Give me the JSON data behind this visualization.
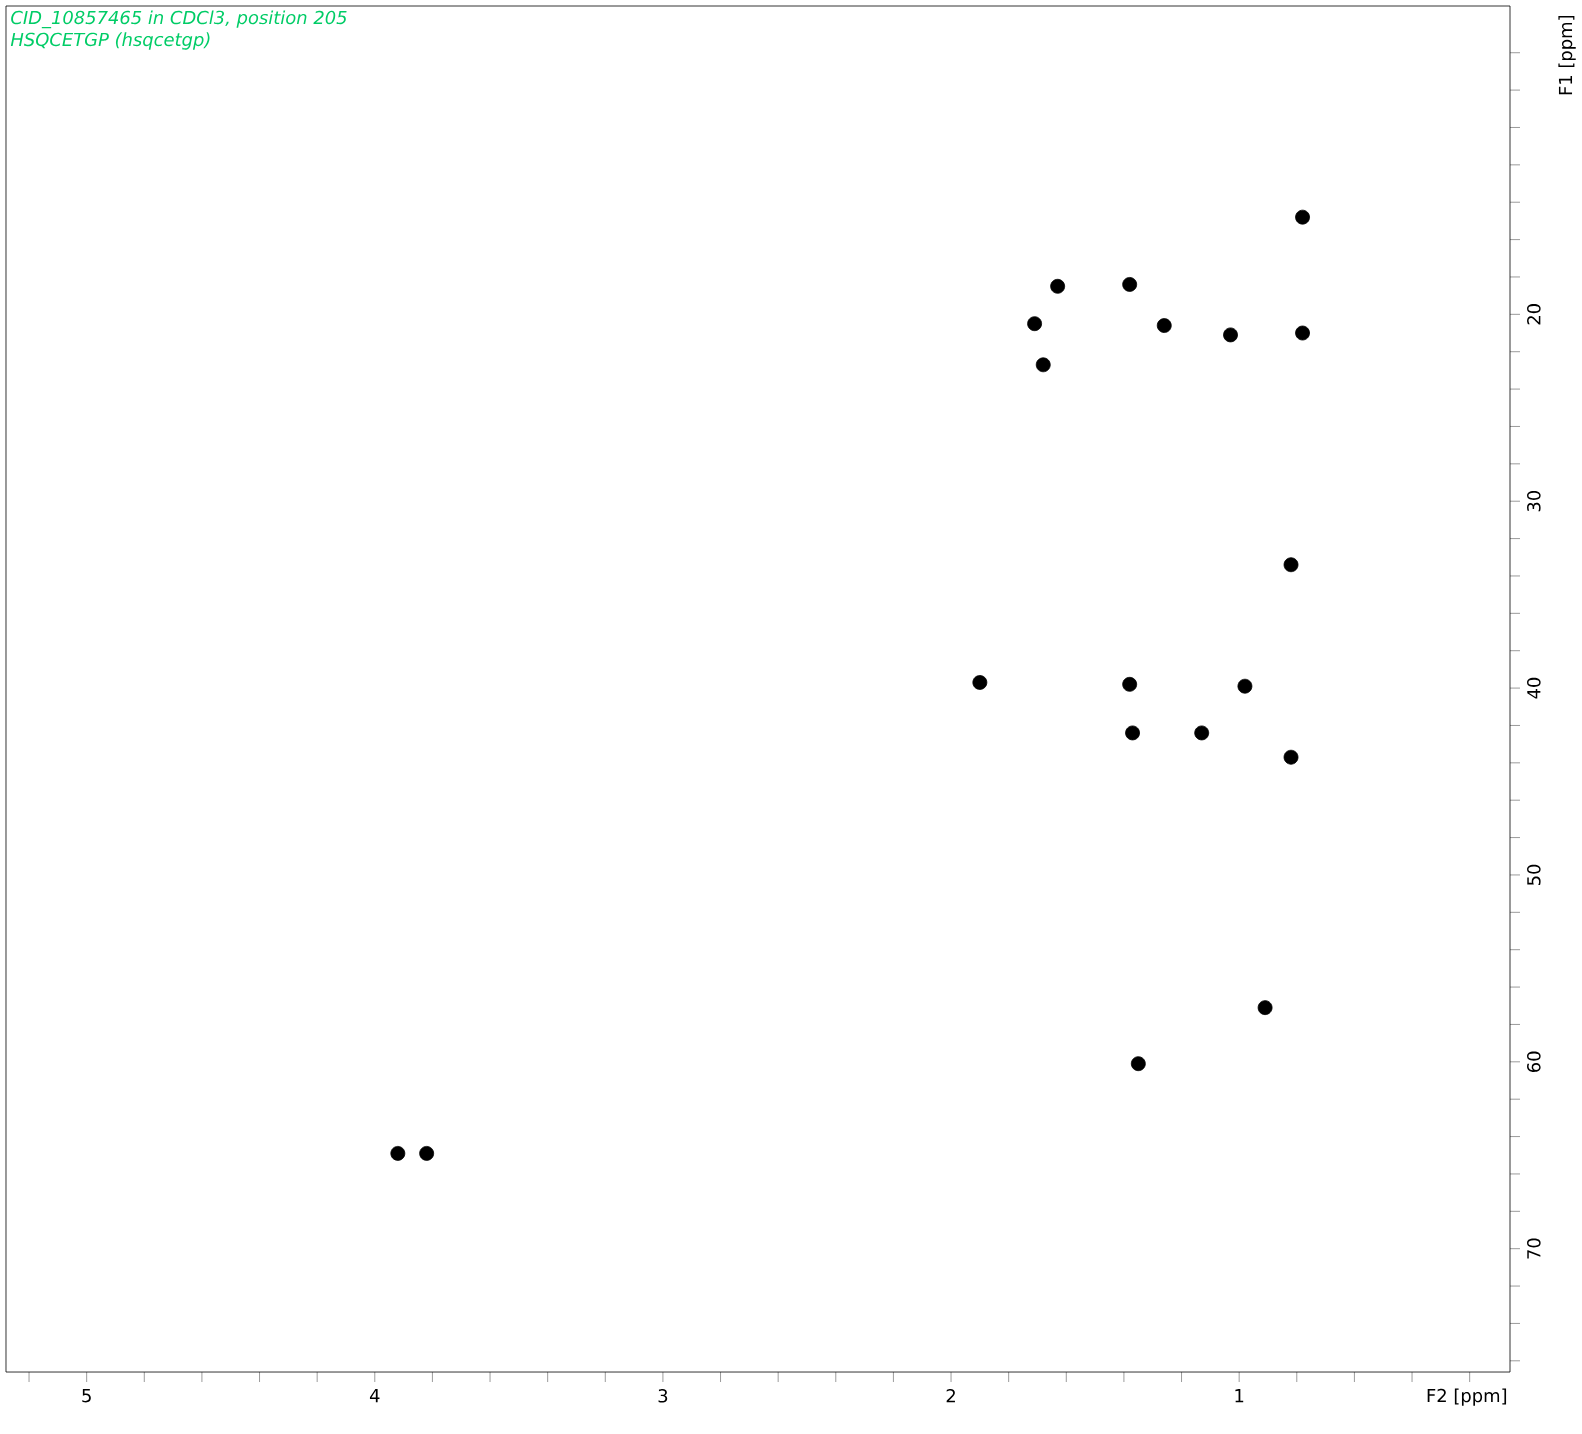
{
  "chart_data": {
    "type": "scatter",
    "title": "CID_10857465 in CDCl3, position 205",
    "subtitle": "HSQCETGP (hsqcetgp)",
    "xlabel": "F2 [ppm]",
    "ylabel": "F1 [ppm]",
    "x": [
      1.63,
      1.38,
      1.71,
      1.68,
      1.26,
      1.03,
      0.78,
      0.78,
      0.82,
      1.9,
      1.38,
      0.98,
      1.37,
      1.13,
      0.82,
      0.91,
      1.35,
      3.92,
      3.82
    ],
    "values": [
      18.5,
      18.4,
      20.5,
      22.7,
      20.6,
      21.1,
      21.0,
      14.8,
      33.4,
      39.7,
      39.8,
      39.9,
      42.4,
      42.4,
      43.7,
      57.1,
      60.1,
      64.9,
      64.9
    ],
    "color": "#000000",
    "grid": false,
    "xlim": [
      5.28,
      0.06
    ],
    "xticks": [
      {
        "value": 5.2,
        "label": null
      },
      5,
      {
        "value": 4.8,
        "label": null
      },
      {
        "value": 4.6,
        "label": null
      },
      {
        "value": 4.4,
        "label": null
      },
      {
        "value": 4.2,
        "label": null
      },
      4,
      {
        "value": 3.8,
        "label": null
      },
      {
        "value": 3.6,
        "label": null
      },
      {
        "value": 3.4,
        "label": null
      },
      {
        "value": 3.2,
        "label": null
      },
      3,
      {
        "value": 2.8,
        "label": null
      },
      {
        "value": 2.6,
        "label": null
      },
      {
        "value": 2.4,
        "label": null
      },
      {
        "value": 2.2,
        "label": null
      },
      2,
      {
        "value": 1.8,
        "label": null
      },
      {
        "value": 1.6,
        "label": null
      },
      {
        "value": 1.4,
        "label": null
      },
      {
        "value": 1.2,
        "label": null
      },
      1,
      {
        "value": 0.8,
        "label": null
      },
      {
        "value": 0.6,
        "label": null
      },
      {
        "value": 0.4,
        "label": null
      },
      {
        "value": 0.2,
        "label": null
      }
    ],
    "ylim": [
      76.6,
      3.5
    ],
    "yticks": [
      {
        "value": 6,
        "label": null
      },
      {
        "value": 8,
        "label": null
      },
      {
        "value": 10,
        "label": null
      },
      {
        "value": 12,
        "label": null
      },
      {
        "value": 14,
        "label": null
      },
      {
        "value": 16,
        "label": null
      },
      {
        "value": 18,
        "label": null
      },
      20,
      {
        "value": 22,
        "label": null
      },
      {
        "value": 24,
        "label": null
      },
      {
        "value": 26,
        "label": null
      },
      {
        "value": 28,
        "label": null
      },
      30,
      {
        "value": 32,
        "label": null
      },
      {
        "value": 34,
        "label": null
      },
      {
        "value": 36,
        "label": null
      },
      {
        "value": 38,
        "label": null
      },
      40,
      {
        "value": 42,
        "label": null
      },
      {
        "value": 44,
        "label": null
      },
      {
        "value": 46,
        "label": null
      },
      {
        "value": 48,
        "label": null
      },
      50,
      {
        "value": 52,
        "label": null
      },
      {
        "value": 54,
        "label": null
      },
      {
        "value": 56,
        "label": null
      },
      {
        "value": 58,
        "label": null
      },
      60,
      {
        "value": 62,
        "label": null
      },
      {
        "value": 64,
        "label": null
      },
      {
        "value": 66,
        "label": null
      },
      {
        "value": 68,
        "label": null
      },
      70,
      {
        "value": 72,
        "label": null
      },
      {
        "value": 74,
        "label": null
      },
      {
        "value": 76,
        "label": null
      }
    ]
  }
}
